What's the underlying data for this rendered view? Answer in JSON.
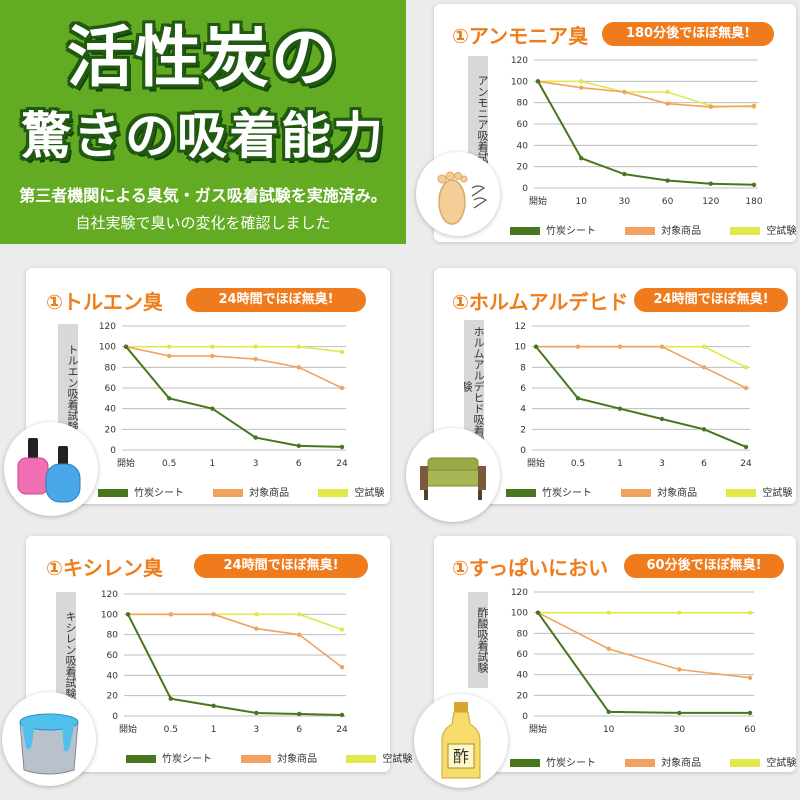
{
  "header": {
    "title_line1": "活性炭の",
    "title_line2": "驚きの吸着能力",
    "subtitle1": "第三者機関による臭気・ガス吸着試験を実施済み。",
    "subtitle2": "自社実験で臭いの変化を確認しました"
  },
  "colors": {
    "bamboo": "#47761c",
    "target": "#f0a25e",
    "blank": "#e2e84a",
    "accent": "#ef7b1c",
    "header_bg": "#62ab23"
  },
  "legend": {
    "bamboo": "竹炭シート",
    "target": "対象商品",
    "blank": "空試験"
  },
  "chart_data": [
    {
      "type": "line",
      "title": "①アンモニア臭",
      "badge": "180分後でほぼ無臭!",
      "ylabel": "アンモニア吸着試験",
      "categories": [
        "開始",
        "10",
        "30",
        "60",
        "120",
        "180"
      ],
      "yticks": [
        "0",
        "20",
        "40",
        "60",
        "80",
        "100",
        "120"
      ],
      "ylim": [
        0,
        120
      ],
      "icon": "foot-odor-icon",
      "series": [
        {
          "name": "竹炭シート",
          "key": "bamboo",
          "values": [
            100,
            28,
            13,
            7,
            4,
            3
          ]
        },
        {
          "name": "対象商品",
          "key": "target",
          "values": [
            100,
            94,
            90,
            79,
            76,
            77
          ]
        },
        {
          "name": "空試験",
          "key": "blank",
          "values": [
            100,
            100,
            90,
            90,
            77,
            76
          ]
        }
      ]
    },
    {
      "type": "line",
      "title": "①トルエン臭",
      "badge": "24時間でほぼ無臭!",
      "ylabel": "トルエン吸着試験",
      "categories": [
        "開始",
        "0.5",
        "1",
        "3",
        "6",
        "24"
      ],
      "yticks": [
        "0",
        "20",
        "40",
        "60",
        "80",
        "100",
        "120"
      ],
      "ylim": [
        0,
        120
      ],
      "icon": "nail-polish-icon",
      "series": [
        {
          "name": "竹炭シート",
          "key": "bamboo",
          "values": [
            100,
            50,
            40,
            12,
            4,
            3
          ]
        },
        {
          "name": "対象商品",
          "key": "target",
          "values": [
            100,
            91,
            91,
            88,
            80,
            60
          ]
        },
        {
          "name": "空試験",
          "key": "blank",
          "values": [
            100,
            100,
            100,
            100,
            100,
            95
          ]
        }
      ]
    },
    {
      "type": "line",
      "title": "①ホルムアルデヒド",
      "badge": "24時間でほぼ無臭!",
      "ylabel": "ホルムアルデヒド吸着試験",
      "categories": [
        "開始",
        "0.5",
        "1",
        "3",
        "6",
        "24"
      ],
      "yticks": [
        "0",
        "2",
        "4",
        "6",
        "8",
        "10",
        "12"
      ],
      "ylim": [
        0,
        12
      ],
      "icon": "sofa-icon",
      "series": [
        {
          "name": "竹炭シート",
          "key": "bamboo",
          "values": [
            10,
            5,
            4,
            3,
            2,
            0.3
          ]
        },
        {
          "name": "対象商品",
          "key": "target",
          "values": [
            10,
            10,
            10,
            10,
            8,
            6
          ]
        },
        {
          "name": "空試験",
          "key": "blank",
          "values": [
            10,
            10,
            10,
            10,
            10,
            8
          ]
        }
      ]
    },
    {
      "type": "line",
      "title": "①キシレン臭",
      "badge": "24時間でほぼ無臭!",
      "ylabel": "キシレン吸着試験",
      "categories": [
        "開始",
        "0.5",
        "1",
        "3",
        "6",
        "24"
      ],
      "yticks": [
        "0",
        "20",
        "40",
        "60",
        "80",
        "100",
        "120"
      ],
      "ylim": [
        0,
        120
      ],
      "icon": "paint-bucket-icon",
      "series": [
        {
          "name": "竹炭シート",
          "key": "bamboo",
          "values": [
            100,
            17,
            10,
            3,
            2,
            1
          ]
        },
        {
          "name": "対象商品",
          "key": "target",
          "values": [
            100,
            100,
            100,
            86,
            80,
            48
          ]
        },
        {
          "name": "空試験",
          "key": "blank",
          "values": [
            100,
            100,
            100,
            100,
            100,
            85
          ]
        }
      ]
    },
    {
      "type": "line",
      "title": "①すっぱいにおい",
      "badge": "60分後でほぼ無臭!",
      "ylabel": "酢酸吸着試験",
      "categories": [
        "開始",
        "10",
        "30",
        "60"
      ],
      "yticks": [
        "0",
        "20",
        "40",
        "60",
        "80",
        "100",
        "120"
      ],
      "ylim": [
        0,
        120
      ],
      "icon": "vinegar-bottle-icon",
      "icon_text": "酢",
      "series": [
        {
          "name": "竹炭シート",
          "key": "bamboo",
          "values": [
            100,
            4,
            3,
            3
          ]
        },
        {
          "name": "対象商品",
          "key": "target",
          "values": [
            100,
            65,
            45,
            37
          ]
        },
        {
          "name": "空試験",
          "key": "blank",
          "values": [
            100,
            100,
            100,
            100
          ]
        }
      ]
    }
  ]
}
